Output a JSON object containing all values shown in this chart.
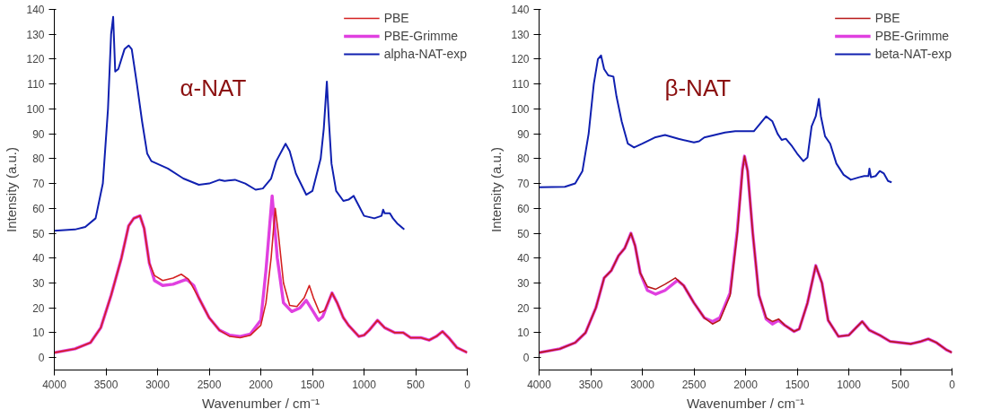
{
  "chart_data": [
    {
      "type": "line",
      "xlabel": "Wavenumber / cm⁻¹",
      "ylabel": "Intensity (a.u.)",
      "annotations": [
        "α-NAT"
      ],
      "xlim": [
        4000,
        0
      ],
      "ylim": [
        -5,
        140
      ],
      "xticks": [
        4000,
        3500,
        3000,
        2500,
        2000,
        1500,
        1000,
        500,
        0
      ],
      "yticks": [
        0,
        10,
        20,
        30,
        40,
        50,
        60,
        70,
        80,
        90,
        100,
        110,
        120,
        130,
        140
      ],
      "grid": false,
      "legend": "top right",
      "line_style": "solid",
      "series": [
        {
          "name": "PBE",
          "color": "#d42020",
          "x": [
            4000,
            3800,
            3650,
            3550,
            3450,
            3350,
            3280,
            3230,
            3170,
            3130,
            3080,
            3030,
            2950,
            2850,
            2770,
            2700,
            2600,
            2500,
            2400,
            2300,
            2200,
            2100,
            2000,
            1950,
            1900,
            1860,
            1830,
            1780,
            1720,
            1650,
            1580,
            1530,
            1490,
            1430,
            1380,
            1310,
            1260,
            1200,
            1150,
            1050,
            1000,
            950,
            870,
            800,
            700,
            620,
            550,
            450,
            370,
            300,
            240,
            180,
            100,
            0
          ],
          "values": [
            2,
            3.5,
            6,
            12,
            25,
            40,
            53,
            56,
            57,
            52,
            38,
            33,
            31,
            32,
            33.5,
            31.5,
            24,
            16,
            11,
            8.5,
            8,
            9,
            13,
            22,
            40,
            60,
            50,
            30,
            21,
            20.5,
            24,
            29,
            24,
            18,
            19,
            26,
            22,
            16,
            13,
            8.5,
            9,
            11,
            15,
            12,
            10,
            10,
            8,
            8,
            7,
            8.5,
            10.5,
            8,
            4,
            2
          ]
        },
        {
          "name": "PBE-Grimme",
          "color": "#e040e0",
          "x": [
            4000,
            3800,
            3650,
            3550,
            3450,
            3350,
            3280,
            3230,
            3170,
            3130,
            3080,
            3030,
            2950,
            2850,
            2720,
            2650,
            2600,
            2500,
            2400,
            2300,
            2200,
            2100,
            2000,
            1950,
            1890,
            1840,
            1780,
            1700,
            1620,
            1560,
            1500,
            1440,
            1400,
            1310,
            1260,
            1200,
            1150,
            1050,
            1000,
            950,
            870,
            800,
            700,
            620,
            550,
            450,
            370,
            300,
            240,
            180,
            100,
            0
          ],
          "values": [
            2,
            3.5,
            6,
            12,
            25,
            40,
            53,
            56,
            57,
            52,
            38,
            31,
            29,
            29.5,
            31.5,
            29,
            24,
            16,
            11,
            9,
            8.5,
            9.5,
            15,
            35,
            65,
            40,
            22,
            18.5,
            20,
            23,
            19,
            15,
            16.5,
            26,
            22,
            16,
            13,
            8.5,
            9,
            11,
            15,
            12,
            10,
            10,
            8,
            8,
            7,
            8.5,
            10.5,
            8,
            4,
            2
          ]
        },
        {
          "name": "alpha-NAT-exp",
          "color": "#1020b0",
          "x": [
            4000,
            3800,
            3700,
            3600,
            3530,
            3480,
            3450,
            3430,
            3410,
            3380,
            3320,
            3280,
            3250,
            3200,
            3150,
            3100,
            3060,
            2900,
            2750,
            2600,
            2500,
            2400,
            2350,
            2250,
            2150,
            2050,
            1980,
            1900,
            1850,
            1760,
            1720,
            1660,
            1560,
            1500,
            1420,
            1390,
            1360,
            1340,
            1315,
            1270,
            1200,
            1150,
            1100,
            1050,
            1000,
            900,
            830,
            815,
            800,
            750,
            720,
            680,
            610
          ],
          "values": [
            51,
            51.5,
            52.5,
            56,
            70,
            100,
            130,
            137,
            115,
            116,
            124,
            125.5,
            124,
            110,
            95,
            82,
            79,
            76,
            72,
            69.5,
            70,
            71.5,
            71,
            71.5,
            70,
            67.5,
            68,
            72,
            79,
            86,
            83,
            74,
            65.5,
            67,
            80,
            92,
            111,
            95,
            78,
            67,
            63,
            63.5,
            65,
            61,
            57,
            56,
            57,
            59.5,
            58,
            58,
            56,
            54,
            51.5
          ]
        }
      ]
    },
    {
      "type": "line",
      "xlabel": "Wavenumber / cm⁻¹",
      "ylabel": "Intensity (a.u.)",
      "annotations": [
        "β-NAT"
      ],
      "xlim": [
        4000,
        0
      ],
      "ylim": [
        -5,
        140
      ],
      "xticks": [
        4000,
        3500,
        3000,
        2500,
        2000,
        1500,
        1000,
        500,
        0
      ],
      "yticks": [
        0,
        10,
        20,
        30,
        40,
        50,
        60,
        70,
        80,
        90,
        100,
        110,
        120,
        130,
        140
      ],
      "grid": false,
      "legend": "top right",
      "line_style": "solid",
      "series": [
        {
          "name": "PBE",
          "color": "#b81818",
          "x": [
            4000,
            3800,
            3650,
            3550,
            3450,
            3370,
            3300,
            3230,
            3170,
            3110,
            3070,
            3020,
            2950,
            2870,
            2780,
            2680,
            2600,
            2500,
            2400,
            2320,
            2250,
            2150,
            2080,
            2030,
            2010,
            1980,
            1930,
            1870,
            1800,
            1740,
            1680,
            1620,
            1530,
            1480,
            1400,
            1320,
            1260,
            1200,
            1100,
            1000,
            930,
            870,
            800,
            700,
            600,
            500,
            400,
            300,
            230,
            150,
            50,
            0
          ],
          "values": [
            2,
            3.5,
            6,
            10,
            20,
            32,
            35,
            41,
            44,
            50,
            45,
            34,
            28.5,
            27.5,
            29.5,
            32,
            29,
            22,
            16,
            13.5,
            15,
            25,
            50,
            75,
            81,
            75,
            50,
            25,
            16,
            14.5,
            15.5,
            13,
            10.5,
            11.5,
            22,
            37,
            30,
            15,
            8.5,
            9,
            12,
            14.5,
            11,
            9,
            6.5,
            6,
            5.5,
            6.5,
            7.5,
            6,
            3,
            2
          ]
        },
        {
          "name": "PBE-Grimme",
          "color": "#e040e0",
          "x": [
            4000,
            3800,
            3650,
            3550,
            3450,
            3370,
            3300,
            3230,
            3170,
            3110,
            3070,
            3020,
            2950,
            2870,
            2780,
            2660,
            2600,
            2500,
            2400,
            2320,
            2250,
            2150,
            2080,
            2030,
            2010,
            1980,
            1930,
            1870,
            1800,
            1740,
            1680,
            1620,
            1530,
            1480,
            1400,
            1320,
            1260,
            1200,
            1100,
            1000,
            930,
            870,
            800,
            700,
            600,
            500,
            400,
            300,
            230,
            150,
            50,
            0
          ],
          "values": [
            2,
            3.5,
            6,
            10,
            20,
            32,
            35,
            41,
            44,
            50,
            45,
            34,
            27,
            25.5,
            27,
            31,
            29,
            22,
            16,
            14.5,
            16,
            26,
            51,
            76,
            81,
            75,
            50,
            25,
            15.5,
            13.5,
            15,
            13,
            10.5,
            11.5,
            22,
            37,
            30,
            15,
            8.5,
            9,
            12,
            14.5,
            11,
            9,
            6.5,
            6,
            5.5,
            6.5,
            7.5,
            6,
            3,
            2
          ]
        },
        {
          "name": "beta-NAT-exp",
          "color": "#1020b0",
          "x": [
            4000,
            3750,
            3650,
            3580,
            3520,
            3470,
            3430,
            3400,
            3370,
            3330,
            3280,
            3250,
            3200,
            3140,
            3080,
            3000,
            2880,
            2780,
            2650,
            2500,
            2450,
            2400,
            2300,
            2200,
            2100,
            2000,
            1920,
            1850,
            1800,
            1740,
            1690,
            1650,
            1610,
            1550,
            1500,
            1440,
            1400,
            1360,
            1320,
            1290,
            1270,
            1230,
            1180,
            1120,
            1050,
            980,
            900,
            850,
            810,
            800,
            785,
            740,
            700,
            660,
            620,
            585
          ],
          "values": [
            68.5,
            68.7,
            70,
            75,
            90,
            110,
            120,
            121.5,
            116,
            113.5,
            113,
            105,
            95,
            86,
            84.5,
            86,
            88.5,
            89.5,
            88,
            86.5,
            87,
            88.5,
            89.5,
            90.5,
            91,
            91,
            91,
            94.5,
            97,
            95,
            90,
            87.5,
            88,
            85,
            82,
            79,
            80.5,
            93,
            97,
            104,
            97,
            89,
            86,
            78,
            73.5,
            71.5,
            72.5,
            73,
            73,
            76,
            72.5,
            73,
            75,
            74,
            71,
            70.5
          ]
        }
      ]
    }
  ]
}
